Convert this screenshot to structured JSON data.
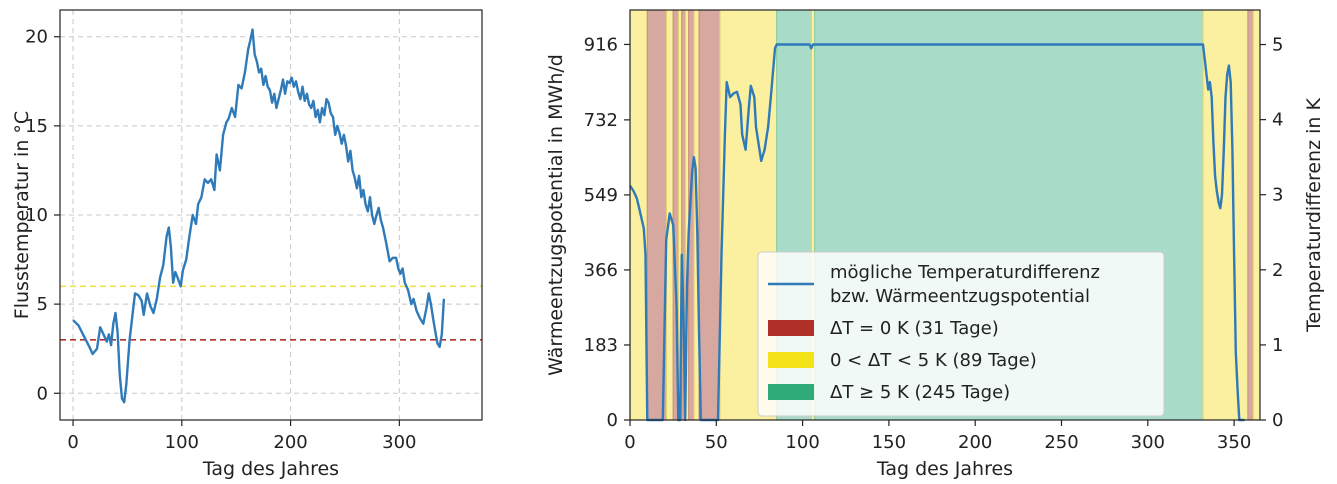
{
  "chart_data": [
    {
      "type": "line",
      "xlabel": "Tag des Jahres",
      "ylabel": "Flusstemperatur in °C",
      "xlim": [
        -12,
        376
      ],
      "ylim": [
        -1.5,
        21.5
      ],
      "xticks": [
        "0",
        "100",
        "200",
        "300"
      ],
      "yticks": [
        "0",
        "5",
        "10",
        "15",
        "20"
      ],
      "grid": true,
      "hlines": [
        {
          "y": 6,
          "color": "#f2e24a",
          "style": "dashed"
        },
        {
          "y": 3,
          "color": "#b0302a",
          "style": "dashed"
        }
      ],
      "series": [
        {
          "color": "#2f7ab8",
          "points": [
            [
              0,
              4.1
            ],
            [
              5,
              3.8
            ],
            [
              10,
              3.2
            ],
            [
              15,
              2.6
            ],
            [
              18,
              2.2
            ],
            [
              22,
              2.5
            ],
            [
              25,
              3.7
            ],
            [
              28,
              3.3
            ],
            [
              31,
              2.9
            ],
            [
              33,
              3.3
            ],
            [
              35,
              2.7
            ],
            [
              37,
              3.9
            ],
            [
              39,
              4.5
            ],
            [
              41,
              3.4
            ],
            [
              43,
              1.0
            ],
            [
              45,
              -0.3
            ],
            [
              47,
              -0.5
            ],
            [
              49,
              0.5
            ],
            [
              52,
              3.0
            ],
            [
              55,
              4.6
            ],
            [
              57,
              5.6
            ],
            [
              60,
              5.5
            ],
            [
              63,
              5.2
            ],
            [
              65,
              4.4
            ],
            [
              68,
              5.6
            ],
            [
              71,
              4.9
            ],
            [
              74,
              4.5
            ],
            [
              77,
              5.3
            ],
            [
              80,
              6.5
            ],
            [
              83,
              7.2
            ],
            [
              86,
              8.8
            ],
            [
              88,
              9.3
            ],
            [
              90,
              8.2
            ],
            [
              92,
              6.2
            ],
            [
              94,
              6.8
            ],
            [
              96,
              6.5
            ],
            [
              99,
              6.0
            ],
            [
              101,
              6.9
            ],
            [
              104,
              7.5
            ],
            [
              107,
              8.8
            ],
            [
              110,
              10.0
            ],
            [
              113,
              9.5
            ],
            [
              115,
              10.6
            ],
            [
              118,
              11.0
            ],
            [
              121,
              12.0
            ],
            [
              124,
              11.8
            ],
            [
              127,
              12.0
            ],
            [
              130,
              11.4
            ],
            [
              132,
              13.4
            ],
            [
              135,
              12.5
            ],
            [
              138,
              14.5
            ],
            [
              141,
              15.2
            ],
            [
              143,
              15.4
            ],
            [
              146,
              16.0
            ],
            [
              149,
              15.5
            ],
            [
              152,
              17.3
            ],
            [
              155,
              17.1
            ],
            [
              158,
              18.0
            ],
            [
              161,
              19.3
            ],
            [
              163,
              19.8
            ],
            [
              165,
              20.4
            ],
            [
              167,
              19.0
            ],
            [
              169,
              18.6
            ],
            [
              171,
              18.0
            ],
            [
              173,
              18.2
            ],
            [
              175,
              17.3
            ],
            [
              177,
              17.8
            ],
            [
              179,
              17.2
            ],
            [
              181,
              17.0
            ],
            [
              183,
              16.3
            ],
            [
              185,
              16.8
            ],
            [
              187,
              16.0
            ],
            [
              189,
              16.5
            ],
            [
              191,
              17.0
            ],
            [
              193,
              17.6
            ],
            [
              195,
              16.8
            ],
            [
              197,
              17.5
            ],
            [
              199,
              17.4
            ],
            [
              201,
              17.7
            ],
            [
              203,
              17.2
            ],
            [
              205,
              17.5
            ],
            [
              207,
              16.9
            ],
            [
              209,
              16.5
            ],
            [
              211,
              17.2
            ],
            [
              213,
              16.4
            ],
            [
              215,
              16.8
            ],
            [
              217,
              16.2
            ],
            [
              219,
              16.0
            ],
            [
              221,
              16.4
            ],
            [
              223,
              15.5
            ],
            [
              225,
              15.9
            ],
            [
              227,
              15.2
            ],
            [
              229,
              16.0
            ],
            [
              231,
              15.6
            ],
            [
              233,
              16.5
            ],
            [
              235,
              16.3
            ],
            [
              237,
              15.7
            ],
            [
              239,
              15.5
            ],
            [
              241,
              14.5
            ],
            [
              243,
              15.0
            ],
            [
              245,
              14.6
            ],
            [
              247,
              14.0
            ],
            [
              249,
              14.5
            ],
            [
              251,
              13.9
            ],
            [
              253,
              13.0
            ],
            [
              255,
              13.6
            ],
            [
              257,
              12.5
            ],
            [
              259,
              12.1
            ],
            [
              261,
              11.5
            ],
            [
              263,
              12.2
            ],
            [
              265,
              11.0
            ],
            [
              267,
              11.4
            ],
            [
              269,
              10.6
            ],
            [
              271,
              10.2
            ],
            [
              273,
              11.0
            ],
            [
              275,
              10.0
            ],
            [
              277,
              9.5
            ],
            [
              279,
              10.0
            ],
            [
              281,
              10.4
            ],
            [
              283,
              9.7
            ],
            [
              285,
              9.3
            ],
            [
              288,
              8.4
            ],
            [
              291,
              7.4
            ],
            [
              294,
              7.6
            ],
            [
              297,
              7.6
            ],
            [
              299,
              7.0
            ],
            [
              301,
              6.7
            ],
            [
              303,
              7.0
            ],
            [
              305,
              6.2
            ],
            [
              308,
              5.8
            ],
            [
              311,
              5.0
            ],
            [
              313,
              5.3
            ],
            [
              316,
              4.6
            ],
            [
              319,
              4.2
            ],
            [
              322,
              3.9
            ],
            [
              325,
              4.8
            ],
            [
              327,
              5.6
            ],
            [
              329,
              5.0
            ],
            [
              331,
              4.2
            ],
            [
              333,
              3.5
            ],
            [
              335,
              2.8
            ],
            [
              337,
              2.6
            ],
            [
              339,
              3.3
            ],
            [
              341,
              5.3
            ]
          ]
        }
      ]
    },
    {
      "type": "line",
      "xlabel": "Tag des Jahres",
      "ylabel": "Wärmeentzugspotential in MWh/d",
      "ylabel_right": "Temperaturdifferenz in K",
      "xlim": [
        0,
        365
      ],
      "ylim": [
        0,
        1000
      ],
      "y2lim": [
        0,
        5.46
      ],
      "xticks": [
        "0",
        "50",
        "100",
        "150",
        "200",
        "250",
        "300",
        "350"
      ],
      "yticks": [
        "0",
        "183",
        "366",
        "549",
        "732",
        "916"
      ],
      "y2ticks": [
        "0",
        "1",
        "2",
        "3",
        "4",
        "5"
      ],
      "grid": false,
      "bands": [
        {
          "x0": 0,
          "x1": 10,
          "category": "yellow"
        },
        {
          "x0": 10,
          "x1": 21,
          "category": "red"
        },
        {
          "x0": 21,
          "x1": 25,
          "category": "yellow"
        },
        {
          "x0": 25,
          "x1": 28,
          "category": "red"
        },
        {
          "x0": 28,
          "x1": 30,
          "category": "yellow"
        },
        {
          "x0": 30,
          "x1": 32,
          "category": "red"
        },
        {
          "x0": 32,
          "x1": 34,
          "category": "yellow"
        },
        {
          "x0": 34,
          "x1": 37,
          "category": "red"
        },
        {
          "x0": 37,
          "x1": 40,
          "category": "yellow"
        },
        {
          "x0": 40,
          "x1": 52,
          "category": "red"
        },
        {
          "x0": 52,
          "x1": 85,
          "category": "yellow"
        },
        {
          "x0": 85,
          "x1": 105,
          "category": "green"
        },
        {
          "x0": 105,
          "x1": 107,
          "category": "yellow"
        },
        {
          "x0": 107,
          "x1": 332,
          "category": "green"
        },
        {
          "x0": 332,
          "x1": 358,
          "category": "yellow"
        },
        {
          "x0": 358,
          "x1": 361,
          "category": "red"
        },
        {
          "x0": 361,
          "x1": 365,
          "category": "yellow"
        }
      ],
      "band_colors": {
        "red": "#d6a8a0",
        "yellow": "#fbefa0",
        "green": "#a9dcc8"
      },
      "band_edges": {
        "red": "#c8877c",
        "yellow": "#e6d76a",
        "green": "#7dc9a8"
      },
      "series": [
        {
          "name": "mögliche Temperaturdifferenz bzw. Wärmeentzugspotential",
          "color": "#2f7ab8",
          "points": [
            [
              0,
              3.12
            ],
            [
              2,
              3.05
            ],
            [
              4,
              2.95
            ],
            [
              6,
              2.75
            ],
            [
              8,
              2.55
            ],
            [
              9,
              2.2
            ],
            [
              10,
              0
            ],
            [
              19,
              0
            ],
            [
              21,
              2.4
            ],
            [
              23,
              2.75
            ],
            [
              25,
              2.6
            ],
            [
              27,
              1.5
            ],
            [
              28,
              0
            ],
            [
              29,
              0
            ],
            [
              30,
              2.2
            ],
            [
              31,
              1.4
            ],
            [
              32,
              0
            ],
            [
              33,
              1.8
            ],
            [
              34,
              2.5
            ],
            [
              36,
              3.3
            ],
            [
              37,
              3.5
            ],
            [
              38,
              3.35
            ],
            [
              39,
              2.5
            ],
            [
              40,
              1.2
            ],
            [
              41,
              0
            ],
            [
              51,
              0
            ],
            [
              53,
              2.2
            ],
            [
              55,
              3.8
            ],
            [
              56,
              4.5
            ],
            [
              57,
              4.4
            ],
            [
              58,
              4.3
            ],
            [
              60,
              4.35
            ],
            [
              62,
              4.37
            ],
            [
              64,
              4.2
            ],
            [
              65,
              3.8
            ],
            [
              67,
              3.6
            ],
            [
              69,
              4.2
            ],
            [
              70,
              4.45
            ],
            [
              72,
              4.3
            ],
            [
              73,
              3.9
            ],
            [
              75,
              3.6
            ],
            [
              76,
              3.45
            ],
            [
              78,
              3.6
            ],
            [
              80,
              3.9
            ],
            [
              82,
              4.4
            ],
            [
              84,
              4.95
            ],
            [
              85,
              5.0
            ],
            [
              104,
              5.0
            ],
            [
              105,
              4.95
            ],
            [
              106,
              5.0
            ],
            [
              332,
              5.0
            ],
            [
              334,
              4.6
            ],
            [
              335,
              4.4
            ],
            [
              336,
              4.5
            ],
            [
              337,
              4.3
            ],
            [
              338,
              3.7
            ],
            [
              339,
              3.25
            ],
            [
              340,
              3.05
            ],
            [
              341,
              2.9
            ],
            [
              342,
              2.82
            ],
            [
              343,
              3.0
            ],
            [
              344,
              3.6
            ],
            [
              345,
              4.3
            ],
            [
              346,
              4.6
            ],
            [
              347,
              4.72
            ],
            [
              348,
              4.5
            ],
            [
              349,
              3.6
            ],
            [
              350,
              2.2
            ],
            [
              351,
              0.9
            ],
            [
              352,
              0.4
            ],
            [
              353,
              0
            ],
            [
              356,
              0
            ]
          ]
        }
      ],
      "legend": {
        "placement": "lower center",
        "entries": [
          {
            "label1": "mögliche Temperaturdifferenz",
            "label2": "bzw. Wärmeentzugspotential",
            "kind": "line",
            "color": "#2f7ab8"
          },
          {
            "label": "ΔT = 0 K (31 Tage)",
            "kind": "patch",
            "color": "#b0302a"
          },
          {
            "label": "0 < ΔT < 5 K (89 Tage)",
            "kind": "patch",
            "color": "#f5e31a"
          },
          {
            "label": "ΔT ≥ 5 K (245 Tage)",
            "kind": "patch",
            "color": "#2eab78"
          }
        ]
      }
    }
  ]
}
